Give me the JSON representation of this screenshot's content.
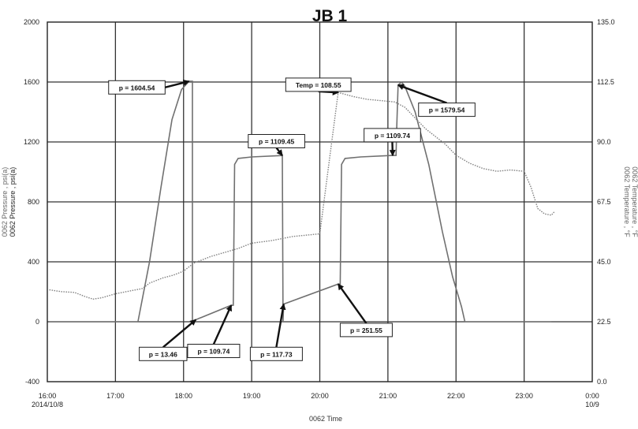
{
  "chart_data": {
    "type": "line",
    "title": "JB 1",
    "xlabel": "0062 Time",
    "ylabel_left": [
      "0062 Pressure , psi(a)",
      "0062 Pressure , psi(a)"
    ],
    "ylabel_right": [
      "0062 Temperature , °F",
      "0062 Temperature , °F"
    ],
    "grid": true,
    "xlim": [
      16.0,
      24.0
    ],
    "ylim_left": [
      -400,
      2000
    ],
    "ylim_right": [
      0.0,
      135.0
    ],
    "x_ticks": [
      {
        "hour": 16,
        "label": "16:00",
        "sub": "2014/10/8"
      },
      {
        "hour": 17,
        "label": "17:00",
        "sub": ""
      },
      {
        "hour": 18,
        "label": "18:00",
        "sub": ""
      },
      {
        "hour": 19,
        "label": "19:00",
        "sub": ""
      },
      {
        "hour": 20,
        "label": "20:00",
        "sub": ""
      },
      {
        "hour": 21,
        "label": "21:00",
        "sub": ""
      },
      {
        "hour": 22,
        "label": "22:00",
        "sub": ""
      },
      {
        "hour": 23,
        "label": "23:00",
        "sub": ""
      },
      {
        "hour": 24,
        "label": "0:00",
        "sub": "10/9"
      }
    ],
    "y_ticks_left": [
      {
        "value": -400,
        "label": "-400"
      },
      {
        "value": 0,
        "label": "0"
      },
      {
        "value": 400,
        "label": "400"
      },
      {
        "value": 800,
        "label": "800"
      },
      {
        "value": 1200,
        "label": "1200"
      },
      {
        "value": 1600,
        "label": "1600"
      },
      {
        "value": 2000,
        "label": "2000"
      }
    ],
    "y_ticks_right": [
      {
        "value": 0.0,
        "label": "0.0"
      },
      {
        "value": 22.5,
        "label": "22.5"
      },
      {
        "value": 45.0,
        "label": "45.0"
      },
      {
        "value": 67.5,
        "label": "67.5"
      },
      {
        "value": 90.0,
        "label": "90.0"
      },
      {
        "value": 112.5,
        "label": "112.5"
      },
      {
        "value": 135.0,
        "label": "135.0"
      }
    ],
    "series": [
      {
        "axis": "left",
        "style": "solid",
        "color": "#707070",
        "points": [
          [
            16.03,
            0
          ],
          [
            17.33,
            0
          ],
          [
            17.5,
            400
          ],
          [
            17.67,
            900
          ],
          [
            17.83,
            1350
          ],
          [
            17.97,
            1550
          ],
          [
            18.08,
            1604.54
          ],
          [
            18.13,
            1604.54
          ],
          [
            18.13,
            0
          ],
          [
            18.14,
            0
          ],
          [
            18.18,
            13.46
          ],
          [
            18.7,
            109.74
          ],
          [
            18.73,
            109.74
          ],
          [
            18.75,
            1050
          ],
          [
            18.8,
            1090
          ],
          [
            19.0,
            1100
          ],
          [
            19.45,
            1109.45
          ],
          [
            19.46,
            0
          ],
          [
            19.47,
            117.73
          ],
          [
            20.27,
            251.55
          ],
          [
            20.3,
            251.55
          ],
          [
            20.32,
            1050
          ],
          [
            20.37,
            1090
          ],
          [
            20.6,
            1100
          ],
          [
            21.07,
            1109.74
          ],
          [
            21.12,
            1109.74
          ],
          [
            21.13,
            1300
          ],
          [
            21.15,
            1579.54
          ],
          [
            21.2,
            1600
          ],
          [
            21.25,
            1570
          ],
          [
            21.4,
            1400
          ],
          [
            21.6,
            1050
          ],
          [
            21.8,
            600
          ],
          [
            21.95,
            300
          ],
          [
            22.08,
            100
          ],
          [
            22.13,
            0
          ],
          [
            23.4,
            0
          ]
        ]
      },
      {
        "axis": "right",
        "style": "dotted",
        "color": "#808080",
        "points": [
          [
            16.03,
            34.5
          ],
          [
            16.2,
            33.8
          ],
          [
            16.4,
            33.5
          ],
          [
            16.55,
            32
          ],
          [
            16.67,
            31
          ],
          [
            16.8,
            31.5
          ],
          [
            17.0,
            33
          ],
          [
            17.2,
            34
          ],
          [
            17.4,
            35
          ],
          [
            17.5,
            37
          ],
          [
            17.7,
            39
          ],
          [
            17.85,
            40
          ],
          [
            18.0,
            41.5
          ],
          [
            18.15,
            44.5
          ],
          [
            18.4,
            47
          ],
          [
            18.6,
            48.5
          ],
          [
            18.8,
            50
          ],
          [
            19.0,
            52
          ],
          [
            19.3,
            53
          ],
          [
            19.6,
            54.5
          ],
          [
            20.0,
            55.5
          ],
          [
            20.27,
            108.55
          ],
          [
            20.5,
            107
          ],
          [
            20.7,
            106
          ],
          [
            20.9,
            105.5
          ],
          [
            21.1,
            105
          ],
          [
            21.25,
            103
          ],
          [
            21.4,
            99
          ],
          [
            21.55,
            95
          ],
          [
            21.7,
            92
          ],
          [
            21.85,
            89
          ],
          [
            22.0,
            85
          ],
          [
            22.2,
            82
          ],
          [
            22.4,
            80
          ],
          [
            22.6,
            79
          ],
          [
            22.8,
            79.5
          ],
          [
            23.0,
            79
          ],
          [
            23.1,
            73
          ],
          [
            23.2,
            65
          ],
          [
            23.3,
            63
          ],
          [
            23.4,
            62.5
          ],
          [
            23.45,
            64
          ]
        ]
      }
    ],
    "annotations": [
      {
        "text": "p = 1604.54",
        "axis": "left",
        "tx": 16.9,
        "ty": 1609,
        "ax": 18.08,
        "ay": 1604.54
      },
      {
        "text": "Temp = 108.55",
        "axis": "right",
        "tx": 19.5,
        "ty": 114,
        "ax": 20.27,
        "ay": 108.55
      },
      {
        "text": "p = 1579.54",
        "axis": "left",
        "tx": 21.45,
        "ty": 1460,
        "ax": 21.15,
        "ay": 1579.54
      },
      {
        "text": "p = 1109.45",
        "axis": "left",
        "tx": 18.95,
        "ty": 1250,
        "ax": 19.45,
        "ay": 1109.45
      },
      {
        "text": "p = 1109.74",
        "axis": "left",
        "tx": 20.65,
        "ty": 1290,
        "ax": 21.07,
        "ay": 1109.74
      },
      {
        "text": "p = 13.46",
        "axis": "left",
        "tx": 17.35,
        "ty": -170,
        "ax": 18.18,
        "ay": 13.46
      },
      {
        "text": "p = 109.74",
        "axis": "left",
        "tx": 18.06,
        "ty": -150,
        "ax": 18.7,
        "ay": 109.74
      },
      {
        "text": "p = 117.73",
        "axis": "left",
        "tx": 18.98,
        "ty": -170,
        "ax": 19.47,
        "ay": 117.73
      },
      {
        "text": "p = 251.55",
        "axis": "left",
        "tx": 20.3,
        "ty": -10,
        "ax": 20.27,
        "ay": 251.55
      }
    ]
  }
}
